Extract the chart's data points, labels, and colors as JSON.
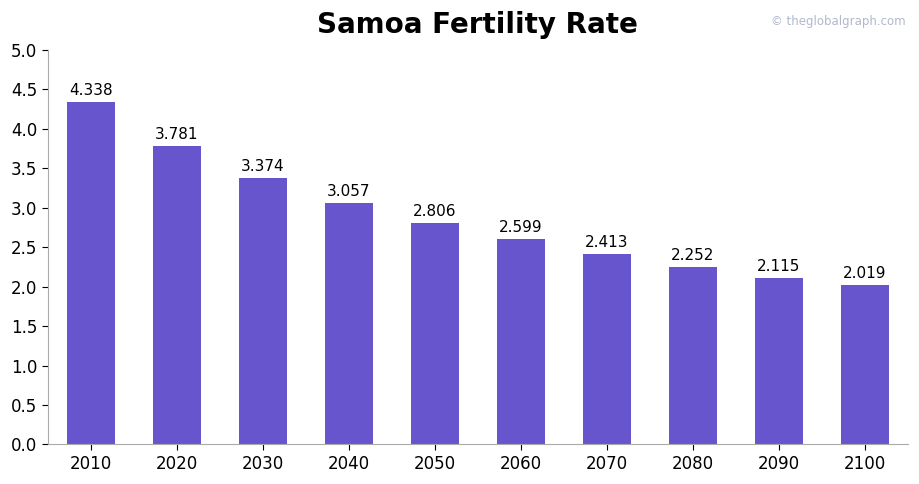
{
  "title": "Samoa Fertility Rate",
  "categories": [
    2010,
    2020,
    2030,
    2040,
    2050,
    2060,
    2070,
    2080,
    2090,
    2100
  ],
  "values": [
    4.338,
    3.781,
    3.374,
    3.057,
    2.806,
    2.599,
    2.413,
    2.252,
    2.115,
    2.019
  ],
  "bar_color": "#6655cc",
  "ylim": [
    0,
    5
  ],
  "yticks": [
    0,
    0.5,
    1,
    1.5,
    2,
    2.5,
    3,
    3.5,
    4,
    4.5,
    5
  ],
  "title_fontsize": 20,
  "label_fontsize": 11,
  "tick_fontsize": 12,
  "watermark": "© theglobalgraph.com",
  "watermark_color": "#b0b8cc",
  "background_color": "#ffffff"
}
